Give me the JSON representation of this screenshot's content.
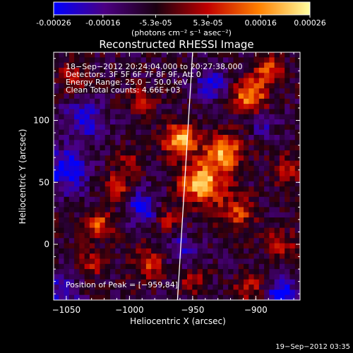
{
  "colorbar": {
    "tick_labels": [
      "-0.00026",
      "-0.00016",
      "-5.3e-05",
      "5.3e-05",
      "0.00016",
      "0.00026"
    ],
    "tick_values": [
      -0.00026,
      -0.00016,
      -5.3e-05,
      5.3e-05,
      0.00016,
      0.00026
    ],
    "range": [
      -0.00026,
      0.00026
    ],
    "units": "(photons cm⁻² s⁻¹ asec⁻²)",
    "colormap": [
      "#0000ff",
      "#4b0082",
      "#1a0010",
      "#c00000",
      "#ff8000",
      "#ffffa0"
    ]
  },
  "chart_data": {
    "type": "heatmap",
    "title": "Reconstructed RHESSI Image",
    "xlabel": "Heliocentric X (arcsec)",
    "ylabel": "Heliocentric Y (arcsec)",
    "xlim": [
      -1060,
      -865
    ],
    "ylim": [
      -45,
      155
    ],
    "x_ticks": [
      -1050,
      -1000,
      -950,
      -900
    ],
    "x_tick_labels": [
      "−1050",
      "−1000",
      "−950",
      "−900"
    ],
    "y_ticks": [
      0,
      50,
      100
    ],
    "y_tick_labels": [
      "0",
      "50",
      "100"
    ],
    "annotations": {
      "time": "18−Sep−2012 20:24:04.000 to 20:27:38.000",
      "detectors": "Detectors: 3F 5F 6F 7F 8F 9F, Att 0",
      "energy": "Energy Range: 25.0 − 50.0 keV",
      "clean": "Clean     Total counts: 4.66E+03",
      "peak": "Position of Peak = [−959,84]"
    },
    "peak": [
      -959,
      84
    ],
    "limb_line": [
      [
        -962,
        -45
      ],
      [
        -950,
        155
      ]
    ],
    "grid_size": [
      48,
      48
    ],
    "blobs": [
      {
        "x": -960,
        "y": 84,
        "a": 1.0,
        "s": 9
      },
      {
        "x": -943,
        "y": 50,
        "a": 1.0,
        "s": 12
      },
      {
        "x": -925,
        "y": 75,
        "a": 0.9,
        "s": 10
      },
      {
        "x": -905,
        "y": 120,
        "a": 0.85,
        "s": 9
      },
      {
        "x": -890,
        "y": 140,
        "a": 0.7,
        "s": 8
      },
      {
        "x": -915,
        "y": 25,
        "a": 0.55,
        "s": 10
      },
      {
        "x": -1025,
        "y": 15,
        "a": 0.65,
        "s": 8
      },
      {
        "x": -1010,
        "y": 45,
        "a": 0.5,
        "s": 8
      },
      {
        "x": -985,
        "y": -15,
        "a": 0.55,
        "s": 9
      },
      {
        "x": -1030,
        "y": -15,
        "a": 0.45,
        "s": 7
      },
      {
        "x": -1045,
        "y": 135,
        "a": 0.5,
        "s": 7
      },
      {
        "x": -990,
        "y": 115,
        "a": 0.45,
        "s": 8
      },
      {
        "x": -1000,
        "y": 65,
        "a": 0.4,
        "s": 7
      },
      {
        "x": -880,
        "y": 0,
        "a": 0.45,
        "s": 8
      },
      {
        "x": -905,
        "y": -35,
        "a": 0.4,
        "s": 8
      },
      {
        "x": -950,
        "y": -30,
        "a": 0.35,
        "s": 7
      },
      {
        "x": -970,
        "y": 20,
        "a": 0.4,
        "s": 7
      },
      {
        "x": -875,
        "y": 60,
        "a": 0.45,
        "s": 8
      },
      {
        "x": -1050,
        "y": 60,
        "a": -0.7,
        "s": 12
      },
      {
        "x": -1035,
        "y": 100,
        "a": -0.5,
        "s": 12
      },
      {
        "x": -990,
        "y": 30,
        "a": -0.55,
        "s": 10
      },
      {
        "x": -880,
        "y": -40,
        "a": -0.8,
        "s": 8
      },
      {
        "x": -935,
        "y": 130,
        "a": -0.5,
        "s": 9
      },
      {
        "x": -1055,
        "y": -40,
        "a": -0.5,
        "s": 10
      },
      {
        "x": -960,
        "y": -5,
        "a": -0.4,
        "s": 9
      },
      {
        "x": -895,
        "y": 95,
        "a": -0.35,
        "s": 7
      }
    ]
  },
  "footer": {
    "timestamp": "19−Sep−2012 03:35"
  }
}
